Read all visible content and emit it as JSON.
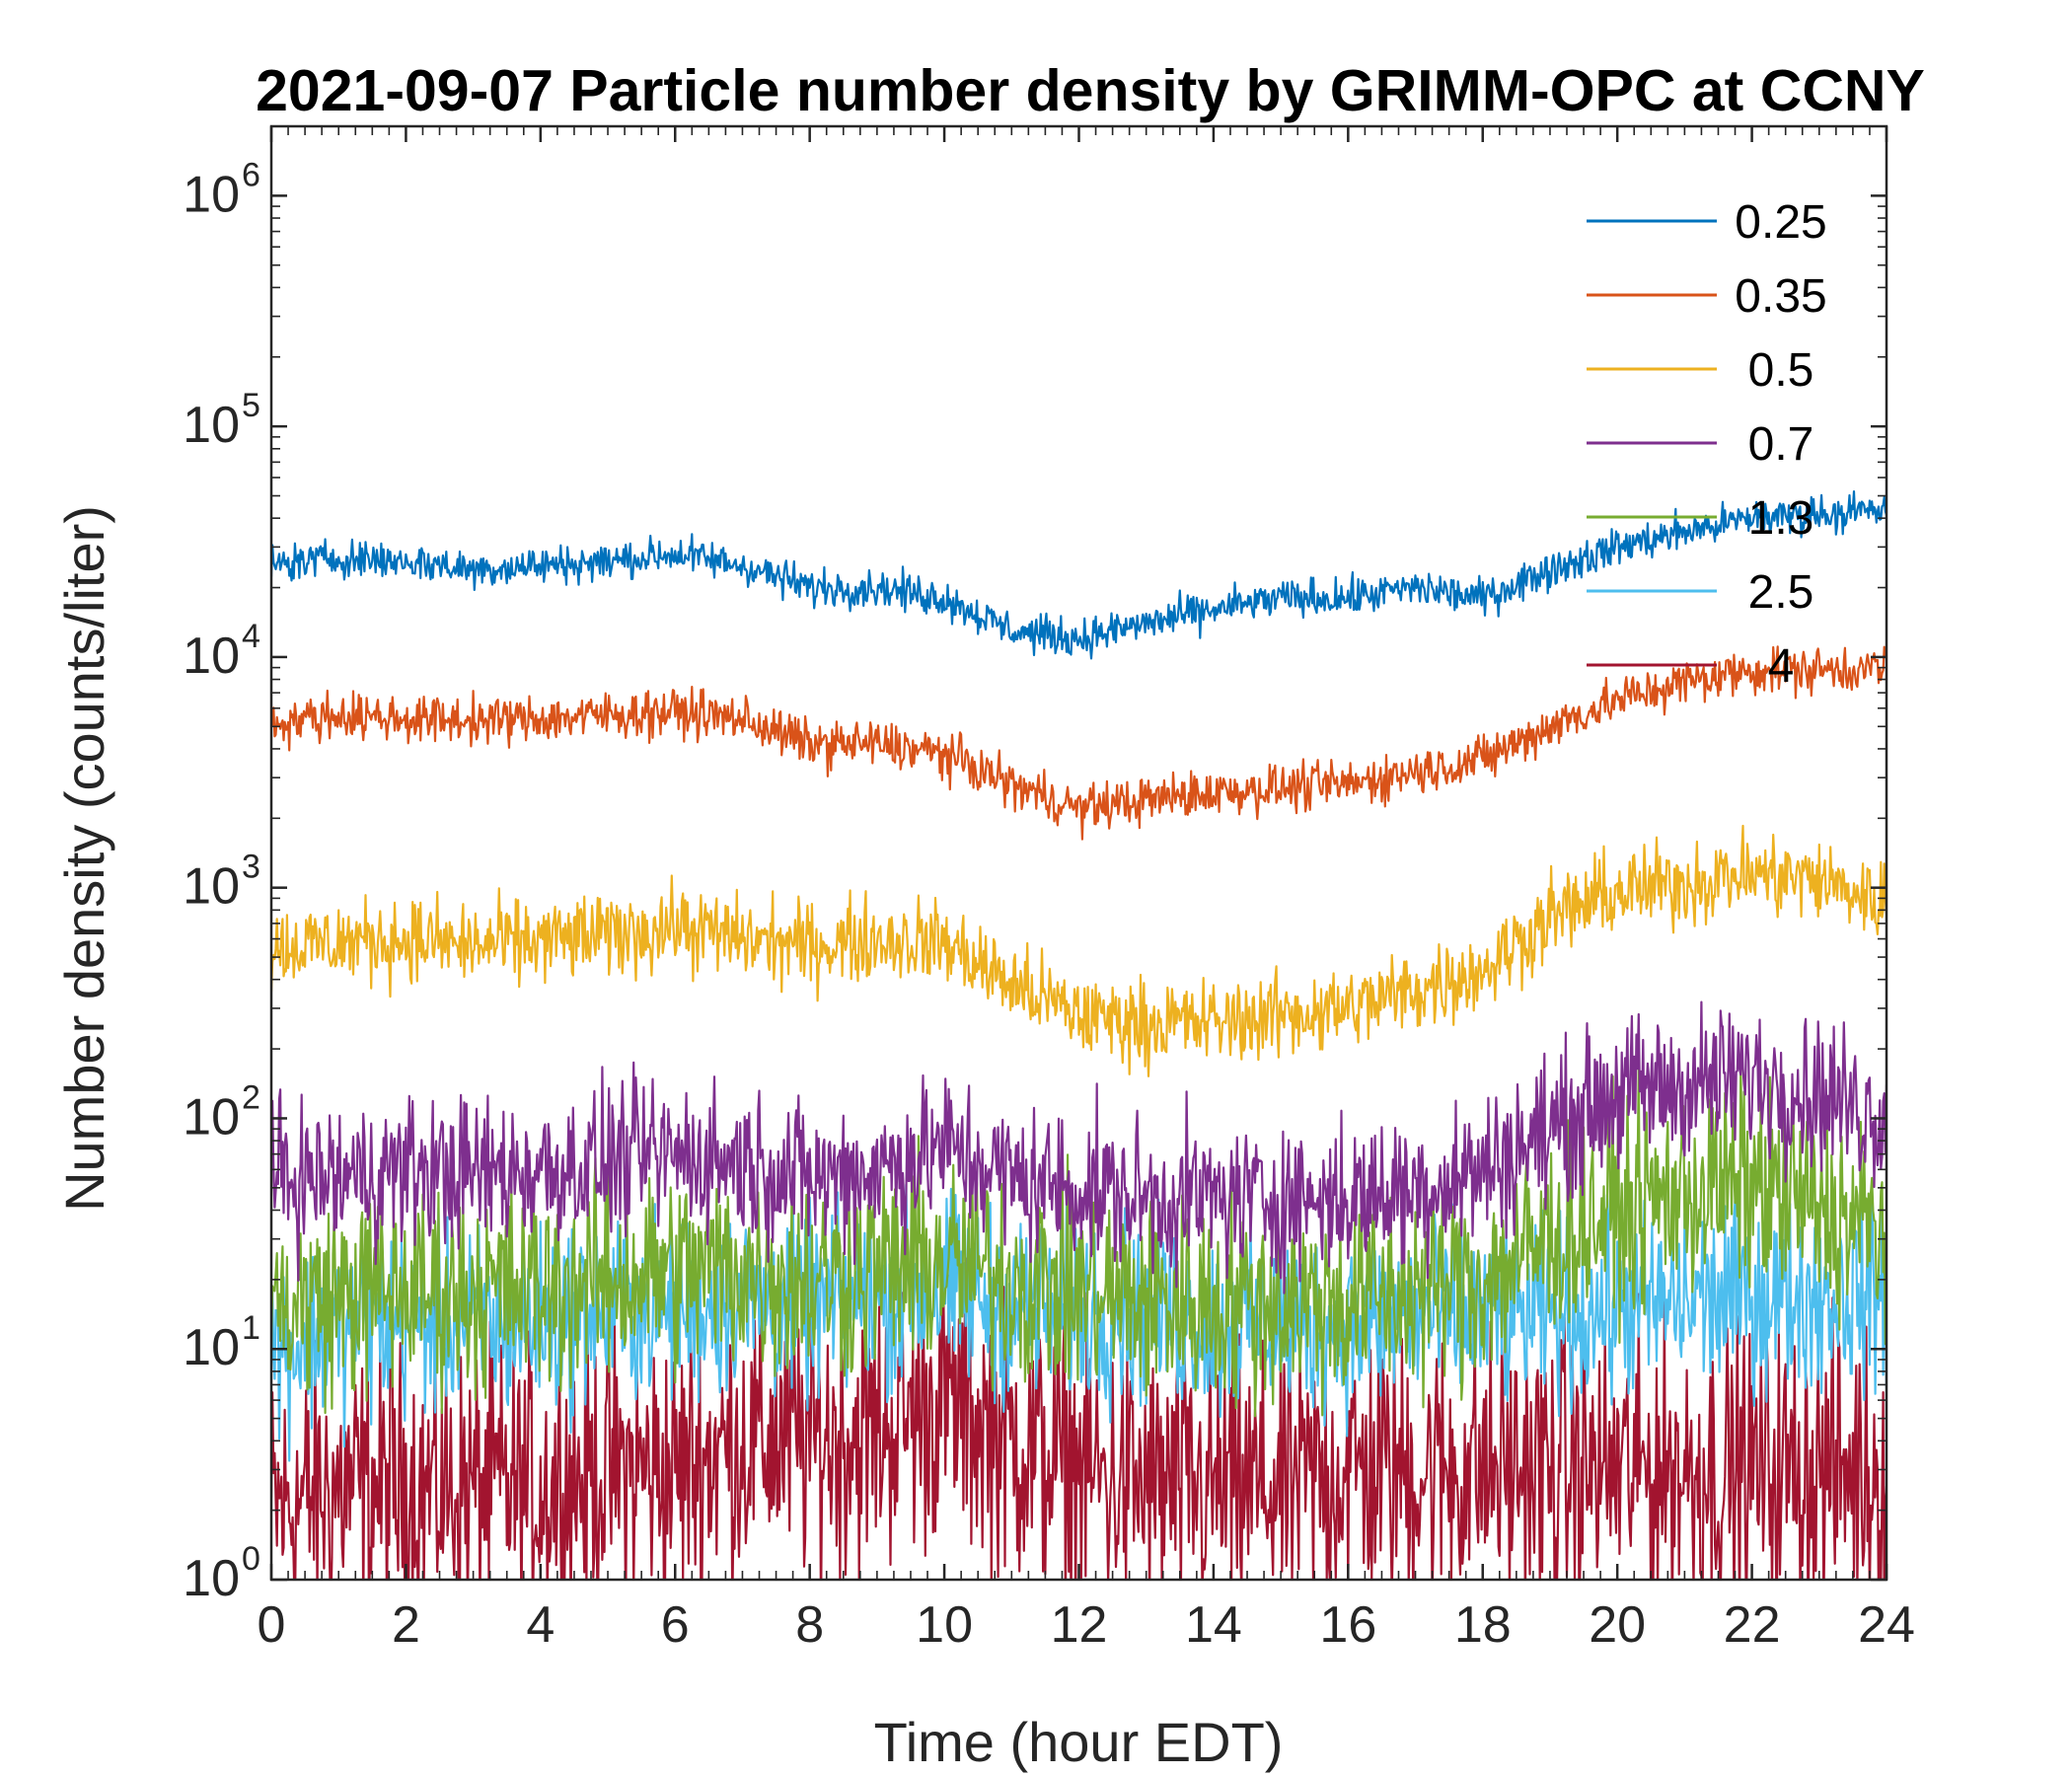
{
  "chart_data": {
    "type": "line",
    "title": "2021-09-07 Particle number density by GRIMM-OPC at CCNY",
    "xlabel": "Time (hour EDT)",
    "ylabel": "Number density (counts/liter)",
    "xlim": [
      0,
      24
    ],
    "ylim": [
      1,
      2000000
    ],
    "yscale": "log",
    "xticks": [
      0,
      2,
      4,
      6,
      8,
      10,
      12,
      14,
      16,
      18,
      20,
      22,
      24
    ],
    "yticks": [
      {
        "value": 1,
        "base": "10",
        "exp": "0"
      },
      {
        "value": 10,
        "base": "10",
        "exp": "1"
      },
      {
        "value": 100,
        "base": "10",
        "exp": "2"
      },
      {
        "value": 1000,
        "base": "10",
        "exp": "3"
      },
      {
        "value": 10000,
        "base": "10",
        "exp": "4"
      },
      {
        "value": 100000,
        "base": "10",
        "exp": "5"
      },
      {
        "value": 1000000,
        "base": "10",
        "exp": "6"
      }
    ],
    "grid": false,
    "legend_position": "top-right",
    "x": [
      0,
      1,
      2,
      3,
      4,
      5,
      6,
      7,
      8,
      9,
      10,
      11,
      12,
      13,
      14,
      15,
      16,
      17,
      18,
      19,
      20,
      21,
      22,
      23,
      24
    ],
    "series": [
      {
        "name": "0.25",
        "color": "#0072BD",
        "noise": 0.04,
        "values": [
          25000,
          27000,
          26000,
          24000,
          25000,
          26000,
          28000,
          25000,
          20000,
          20000,
          18000,
          13000,
          12000,
          14000,
          16000,
          18000,
          18000,
          20000,
          18000,
          24000,
          30000,
          35000,
          40000,
          42000,
          43000
        ]
      },
      {
        "name": "0.35",
        "color": "#D95319",
        "noise": 0.05,
        "values": [
          5200,
          5600,
          5400,
          5300,
          5400,
          5600,
          5800,
          5400,
          4200,
          4200,
          3800,
          2800,
          2200,
          2400,
          2600,
          2700,
          2800,
          3200,
          3600,
          5000,
          6500,
          7800,
          8800,
          8800,
          9000
        ]
      },
      {
        "name": "0.5",
        "color": "#EDB120",
        "noise": 0.09,
        "values": [
          550,
          580,
          600,
          560,
          590,
          620,
          680,
          600,
          560,
          600,
          580,
          380,
          280,
          260,
          260,
          280,
          300,
          360,
          440,
          750,
          950,
          1050,
          1150,
          1080,
          850
        ]
      },
      {
        "name": "0.7",
        "color": "#7E2F8E",
        "noise": 0.16,
        "values": [
          55,
          55,
          60,
          58,
          60,
          65,
          70,
          65,
          55,
          60,
          75,
          55,
          50,
          45,
          45,
          45,
          45,
          50,
          60,
          90,
          130,
          140,
          150,
          130,
          100
        ]
      },
      {
        "name": "1.3",
        "color": "#77AC30",
        "noise": 0.22,
        "values": [
          15,
          17,
          18,
          18,
          18,
          20,
          22,
          22,
          20,
          22,
          24,
          20,
          18,
          16,
          16,
          16,
          16,
          18,
          20,
          30,
          40,
          48,
          52,
          40,
          32
        ]
      },
      {
        "name": "2.5",
        "color": "#4DBEEE",
        "noise": 0.2,
        "values": [
          10,
          12,
          13,
          13,
          13,
          15,
          15,
          16,
          15,
          17,
          18,
          15,
          15,
          14,
          13,
          13,
          13,
          14,
          14,
          14,
          15,
          16,
          17,
          17,
          17
        ]
      },
      {
        "name": "4",
        "color": "#A2142F",
        "noise": 0.3,
        "values": [
          2,
          2.5,
          2.5,
          2.5,
          2.5,
          3,
          3,
          4,
          4,
          4.5,
          6,
          4,
          3,
          2.5,
          2.5,
          2.5,
          3,
          3,
          3,
          3,
          3,
          3,
          3,
          3,
          3
        ]
      }
    ]
  }
}
